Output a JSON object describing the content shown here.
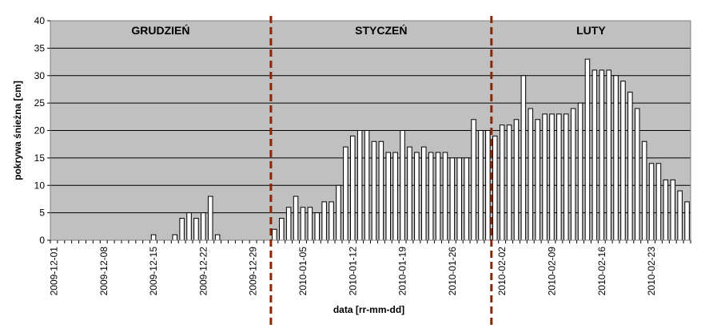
{
  "chart_data": {
    "type": "bar",
    "title": "",
    "xlabel": "data [rr-mm-dd]",
    "ylabel": "pokrywa śnieżna [cm]",
    "ylim": [
      0,
      40
    ],
    "yticks": [
      0,
      5,
      10,
      15,
      20,
      25,
      30,
      35,
      40
    ],
    "grid": true,
    "legend": "none",
    "x_start": "2009-12-01",
    "x_tick_labels": [
      "2009-12-01",
      "2009-12-08",
      "2009-12-15",
      "2009-12-22",
      "2009-12-29",
      "2010-01-05",
      "2010-01-12",
      "2010-01-19",
      "2010-01-26",
      "2010-02-02",
      "2010-02-09",
      "2010-02-16",
      "2010-02-23"
    ],
    "values": [
      0,
      0,
      0,
      0,
      0,
      0,
      0,
      0,
      0,
      0,
      0,
      0,
      0,
      0,
      1,
      0,
      0,
      1,
      4,
      5,
      4,
      5,
      8,
      1,
      0,
      0,
      0,
      0,
      0,
      0,
      0,
      2,
      4,
      6,
      8,
      6,
      6,
      5,
      7,
      7,
      10,
      17,
      19,
      20,
      20,
      18,
      18,
      16,
      16,
      20,
      17,
      16,
      17,
      16,
      16,
      16,
      15,
      15,
      15,
      22,
      20,
      20,
      19,
      21,
      21,
      22,
      30,
      24,
      22,
      23,
      23,
      23,
      23,
      24,
      25,
      33,
      31,
      31,
      31,
      30,
      29,
      27,
      24,
      18,
      14,
      14,
      11,
      11,
      9,
      7
    ],
    "month_labels": [
      {
        "label": "GRUDZIEŃ",
        "month": "2009-12"
      },
      {
        "label": "STYCZEŃ",
        "month": "2010-01"
      },
      {
        "label": "LUTY",
        "month": "2010-02"
      }
    ],
    "month_boundaries": [
      "2010-01-01",
      "2010-02-01"
    ],
    "colors": {
      "plot_background": "#c0c0c0",
      "bar_fill": "#ffffff",
      "bar_stroke": "#000000",
      "gridline": "#000000",
      "boundary": "#8b2500"
    }
  }
}
